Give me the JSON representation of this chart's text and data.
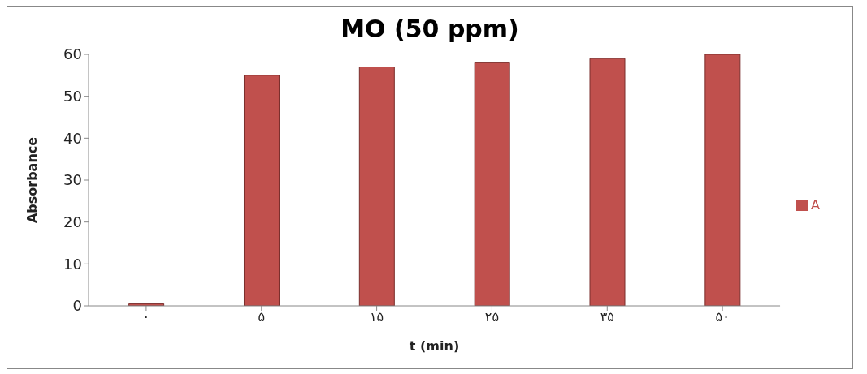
{
  "chart_data": {
    "type": "bar",
    "title": "MO (50 ppm)",
    "xlabel": "t (min)",
    "ylabel": "Absorbance",
    "categories": [
      "۰",
      "۵",
      "۱۵",
      "۲۵",
      "۳۵",
      "۵۰"
    ],
    "series": [
      {
        "name": "A",
        "color": "#c0504d",
        "values": [
          0.5,
          55,
          57,
          58,
          59,
          60
        ]
      }
    ],
    "ylim": [
      0,
      60
    ],
    "yticks": [
      0,
      10,
      20,
      30,
      40,
      50,
      60
    ],
    "legend": "right"
  }
}
